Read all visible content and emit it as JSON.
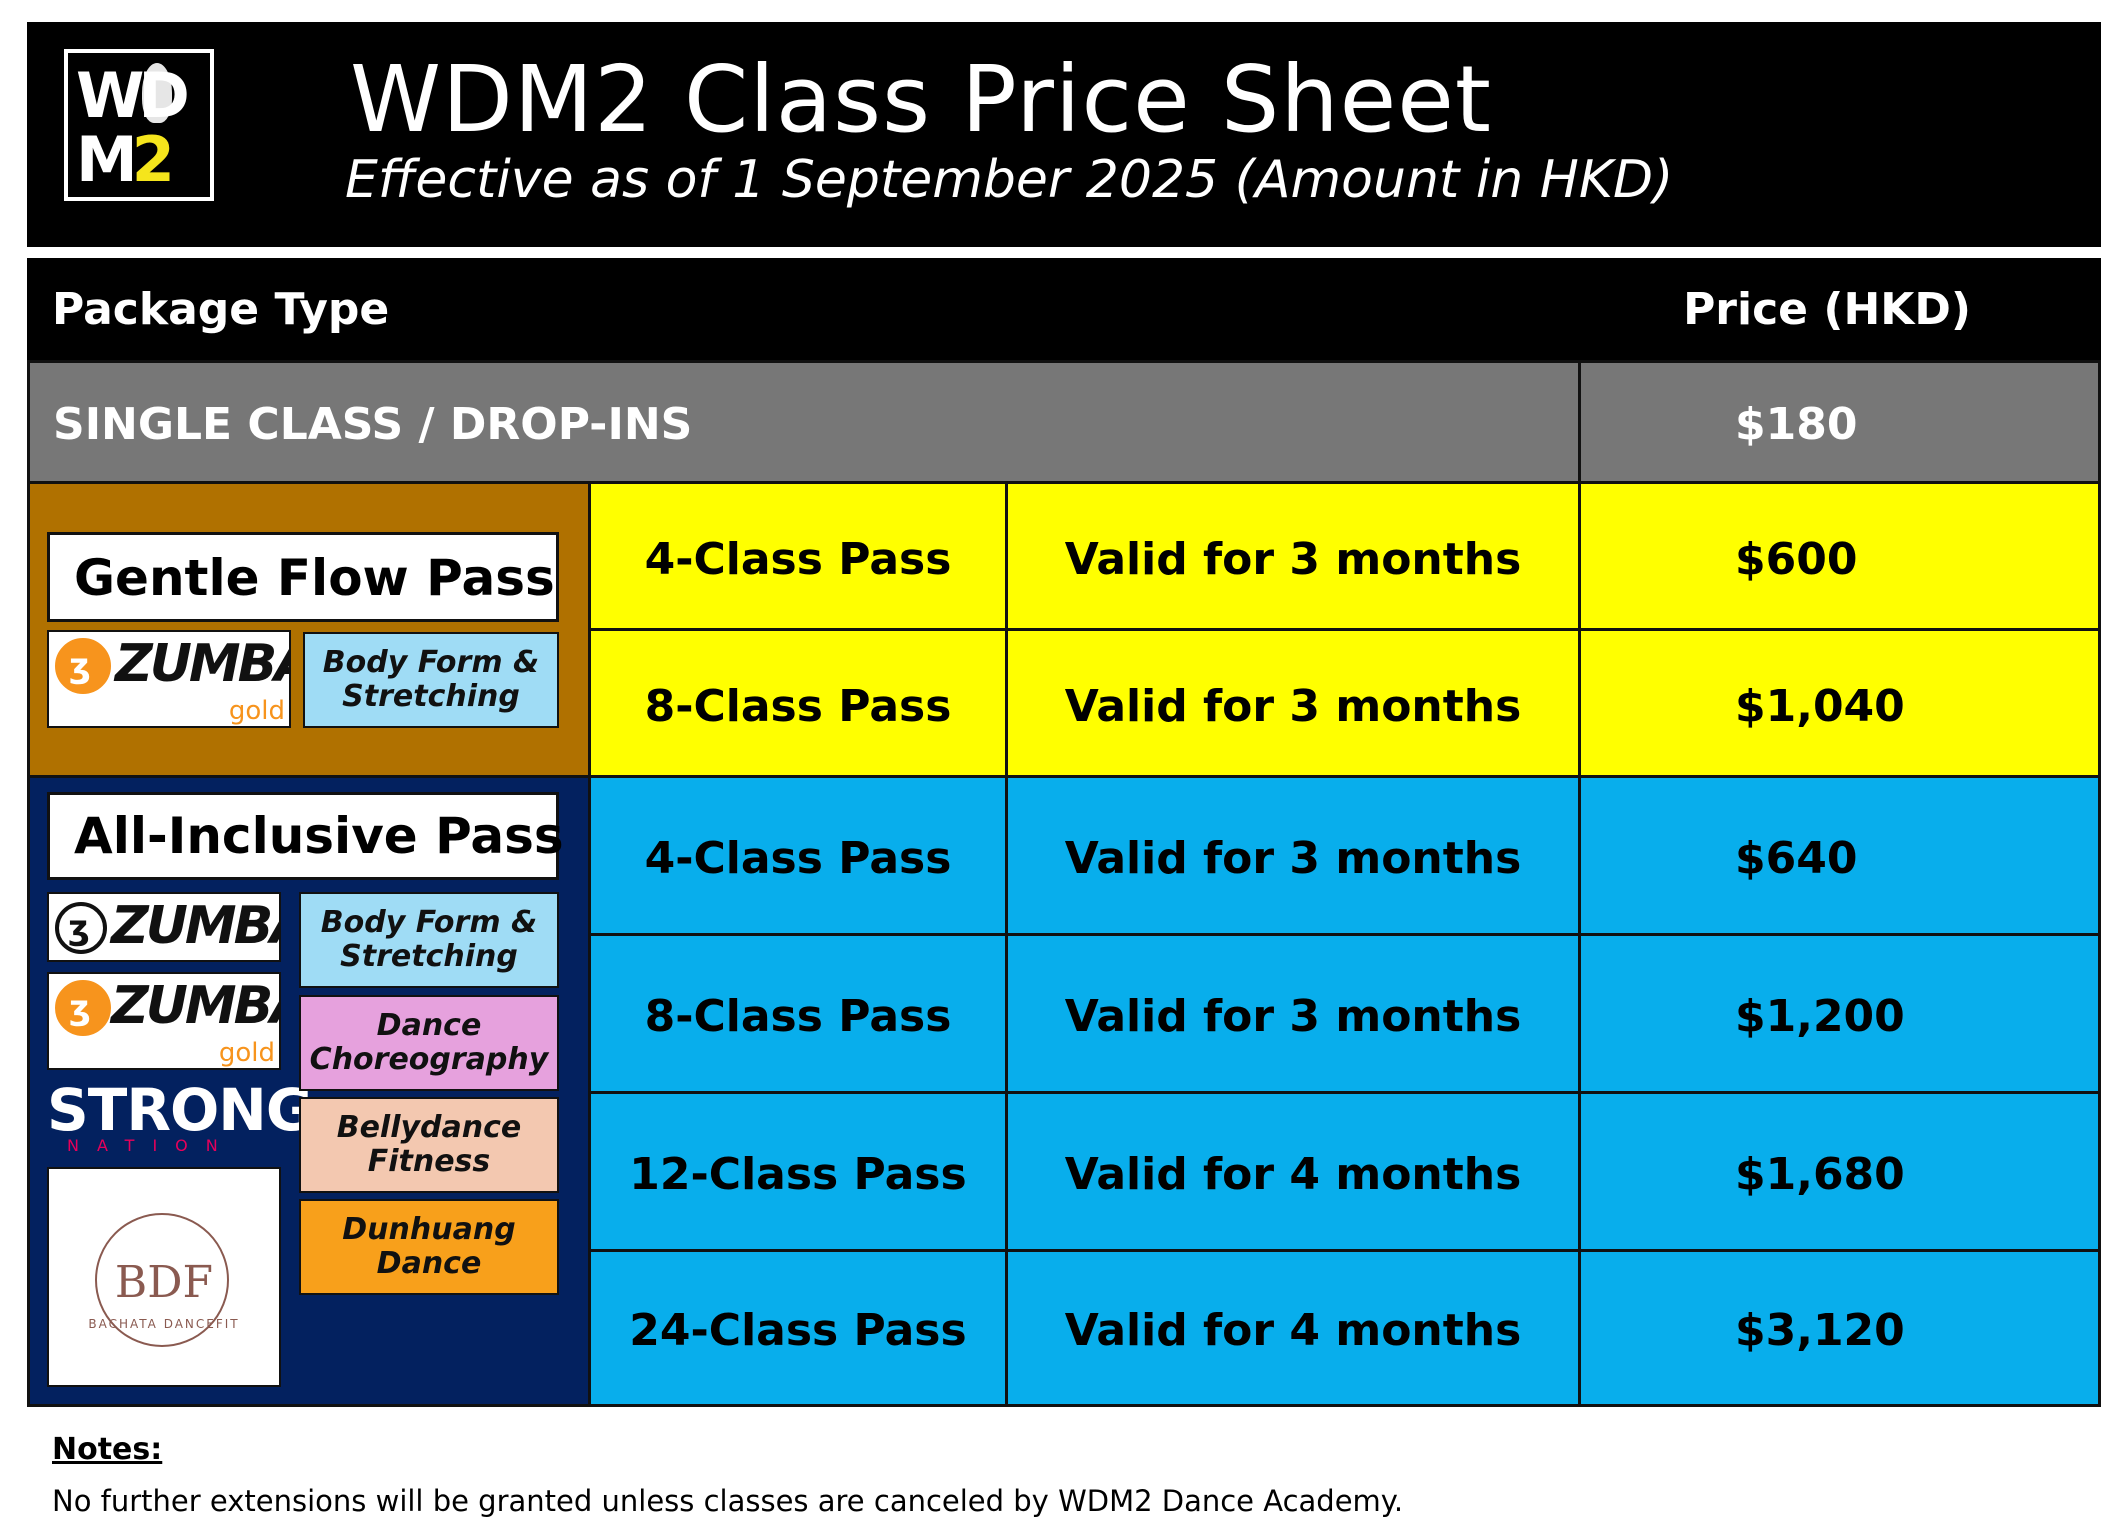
{
  "header": {
    "logo_line1": "WD",
    "logo_line2_m": "M",
    "logo_line2_2": "2",
    "title": "WDM2 Class Price Sheet",
    "subtitle": "Effective as of 1 September 2025 (Amount in HKD)"
  },
  "table": {
    "col_package": "Package Type",
    "col_price": "Price (HKD)",
    "single": {
      "label": "SINGLE CLASS / DROP-INS",
      "price": "$180"
    },
    "gentle_flow": {
      "title": "Gentle Flow Pass",
      "rows": [
        {
          "pass": "4-Class Pass",
          "validity": "Valid for 3 months",
          "price": "$600"
        },
        {
          "pass": "8-Class Pass",
          "validity": "Valid for 3 months",
          "price": "$1,040"
        }
      ]
    },
    "all_inclusive": {
      "title": "All-Inclusive Pass",
      "rows": [
        {
          "pass": "4-Class Pass",
          "validity": "Valid for 3 months",
          "price": "$640"
        },
        {
          "pass": "8-Class Pass",
          "validity": "Valid for 3 months",
          "price": "$1,200"
        },
        {
          "pass": "12-Class Pass",
          "validity": "Valid for 4 months",
          "price": "$1,680"
        },
        {
          "pass": "24-Class Pass",
          "validity": "Valid for 4 months",
          "price": "$3,120"
        }
      ]
    }
  },
  "brands": {
    "zumba": "ZUMBA",
    "zumba_gold_suffix": "gold",
    "strong_main": "STRONG",
    "strong_sub": "NATION",
    "bdf_mono": "BDF",
    "bdf_caption": "BACHATA DANCEFIT"
  },
  "tags": {
    "body_form_1": "Body Form &",
    "body_form_2": "Stretching",
    "dance_choreo_1": "Dance",
    "dance_choreo_2": "Choreography",
    "bellydance_1": "Bellydance",
    "bellydance_2": "Fitness",
    "dunhuang_1": "Dunhuang",
    "dunhuang_2": "Dance"
  },
  "colors": {
    "yellow": "#ffff00",
    "blue": "#08aeec",
    "gold_brown": "#b07100",
    "navy": "#03215f",
    "gray": "#777777",
    "tag_light_blue": "#9fdcf5",
    "tag_pink": "#e6a1dd",
    "tag_peach": "#f3c8b0",
    "tag_orange": "#f8a01b"
  },
  "notes": {
    "heading": "Notes:",
    "text": "No further extensions will be granted unless classes are canceled by WDM2 Dance Academy."
  }
}
